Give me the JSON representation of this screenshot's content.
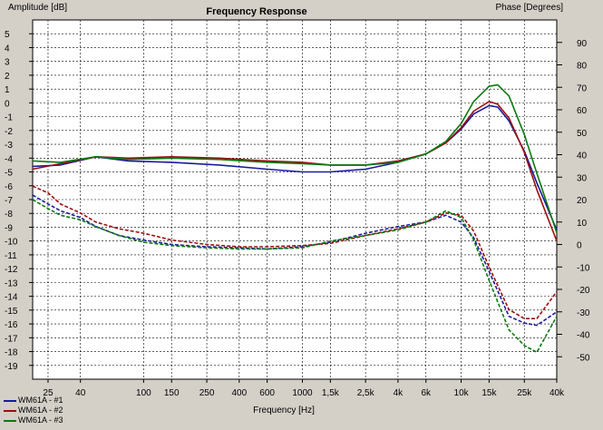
{
  "chart_data": {
    "type": "line",
    "title": "Frequency Response",
    "xlabel": "Frequency [Hz]",
    "ylabel": "Amplitude [dB]",
    "y2label": "Phase [Degrees]",
    "xscale": "log",
    "xlim": [
      20,
      40000
    ],
    "ylim": [
      -20,
      6
    ],
    "y2lim": [
      -60,
      100
    ],
    "grid": true,
    "legend_position": "bottom-left",
    "x_ticks": [
      {
        "v": 25,
        "t": "25"
      },
      {
        "v": 40,
        "t": "40"
      },
      {
        "v": 100,
        "t": "100"
      },
      {
        "v": 150,
        "t": "150"
      },
      {
        "v": 250,
        "t": "250"
      },
      {
        "v": 400,
        "t": "400"
      },
      {
        "v": 600,
        "t": "600"
      },
      {
        "v": 1000,
        "t": "1000"
      },
      {
        "v": 1500,
        "t": "1,5k"
      },
      {
        "v": 2500,
        "t": "2,5k"
      },
      {
        "v": 4000,
        "t": "4k"
      },
      {
        "v": 6000,
        "t": "6k"
      },
      {
        "v": 10000,
        "t": "10k"
      },
      {
        "v": 15000,
        "t": "15k"
      },
      {
        "v": 25000,
        "t": "25k"
      },
      {
        "v": 40000,
        "t": "40k"
      }
    ],
    "y_ticks": [
      5,
      4,
      3,
      2,
      1,
      0,
      -1,
      -2,
      -3,
      -4,
      -5,
      -6,
      -7,
      -8,
      -9,
      -10,
      -11,
      -12,
      -13,
      -14,
      -15,
      -16,
      -17,
      -18,
      -19
    ],
    "y2_ticks": [
      90,
      80,
      70,
      60,
      50,
      40,
      30,
      20,
      10,
      0,
      -10,
      -20,
      -30,
      -40,
      -50
    ],
    "series": [
      {
        "name": "WM61A - #1",
        "color": "#1a1aa0",
        "axis": "amplitude",
        "dash": "solid",
        "x": [
          20,
          30,
          50,
          80,
          150,
          300,
          600,
          1000,
          1500,
          2500,
          4000,
          6000,
          8000,
          10000,
          12000,
          15000,
          17000,
          20000,
          25000,
          30000,
          40000
        ],
        "y": [
          -4.6,
          -4.5,
          -3.9,
          -4.2,
          -4.3,
          -4.5,
          -4.8,
          -5.0,
          -5.0,
          -4.8,
          -4.3,
          -3.7,
          -2.9,
          -1.9,
          -0.8,
          -0.2,
          -0.3,
          -1.3,
          -3.5,
          -5.8,
          -9.2
        ]
      },
      {
        "name": "WM61A - #2",
        "color": "#9a1010",
        "axis": "amplitude",
        "dash": "solid",
        "x": [
          20,
          30,
          50,
          80,
          150,
          300,
          600,
          1000,
          1500,
          2500,
          4000,
          6000,
          8000,
          10000,
          12000,
          15000,
          17000,
          20000,
          25000,
          30000,
          40000
        ],
        "y": [
          -4.8,
          -4.4,
          -3.9,
          -4.0,
          -3.9,
          -4.0,
          -4.2,
          -4.3,
          -4.5,
          -4.5,
          -4.2,
          -3.7,
          -2.9,
          -1.8,
          -0.6,
          0.1,
          -0.1,
          -1.1,
          -3.6,
          -6.3,
          -10.0
        ]
      },
      {
        "name": "WM61A - #3",
        "color": "#0a7a10",
        "axis": "amplitude",
        "dash": "solid",
        "x": [
          20,
          30,
          50,
          80,
          150,
          300,
          600,
          1000,
          1500,
          2500,
          4000,
          6000,
          8000,
          10000,
          12000,
          15000,
          17000,
          20000,
          25000,
          30000,
          40000
        ],
        "y": [
          -4.2,
          -4.3,
          -3.9,
          -4.1,
          -4.0,
          -4.1,
          -4.3,
          -4.4,
          -4.5,
          -4.5,
          -4.3,
          -3.7,
          -2.8,
          -1.5,
          0.1,
          1.2,
          1.3,
          0.5,
          -2.3,
          -5.1,
          -9.4
        ]
      },
      {
        "name": "WM61A - #1 (phase)",
        "color": "#1a1aa0",
        "axis": "phase",
        "dash": "dashed",
        "x": [
          20,
          25,
          30,
          40,
          50,
          70,
          100,
          150,
          250,
          400,
          600,
          1000,
          1500,
          2500,
          4000,
          6000,
          8000,
          10000,
          12000,
          15000,
          20000,
          25000,
          30000,
          40000
        ],
        "y": [
          22,
          18,
          15,
          12,
          8,
          4,
          2,
          0,
          -1,
          -1.5,
          -2,
          -1,
          1,
          5,
          8,
          10,
          13,
          10,
          3,
          -12,
          -32,
          -35,
          -36,
          -30
        ]
      },
      {
        "name": "WM61A - #2 (phase)",
        "color": "#9a1010",
        "axis": "phase",
        "dash": "dashed",
        "x": [
          20,
          25,
          30,
          40,
          50,
          70,
          100,
          150,
          250,
          400,
          600,
          1000,
          1500,
          2500,
          4000,
          6000,
          8000,
          10000,
          12000,
          15000,
          20000,
          25000,
          30000,
          40000
        ],
        "y": [
          26,
          23,
          18,
          14,
          10,
          7,
          5,
          2,
          0,
          -1,
          -1,
          -0.5,
          0.5,
          4,
          7,
          10,
          14,
          13,
          6,
          -10,
          -29,
          -33,
          -33,
          -21
        ]
      },
      {
        "name": "WM61A - #3 (phase)",
        "color": "#0a7a10",
        "axis": "phase",
        "dash": "dashed",
        "x": [
          20,
          25,
          30,
          40,
          50,
          70,
          100,
          150,
          250,
          400,
          600,
          1000,
          1500,
          2500,
          4000,
          6000,
          8000,
          10000,
          12000,
          15000,
          20000,
          25000,
          30000,
          40000
        ],
        "y": [
          20,
          16,
          13,
          11,
          8,
          4,
          1,
          -0.5,
          -1.5,
          -2,
          -2,
          -1.5,
          1.5,
          4,
          6.5,
          10,
          15,
          12,
          2,
          -16,
          -38,
          -45,
          -48,
          -32
        ]
      }
    ]
  },
  "legend": [
    {
      "label": "WM61A - #1",
      "color": "#1a1aa0"
    },
    {
      "label": "WM61A - #2",
      "color": "#9a1010"
    },
    {
      "label": "WM61A - #3",
      "color": "#0a7a10"
    }
  ]
}
